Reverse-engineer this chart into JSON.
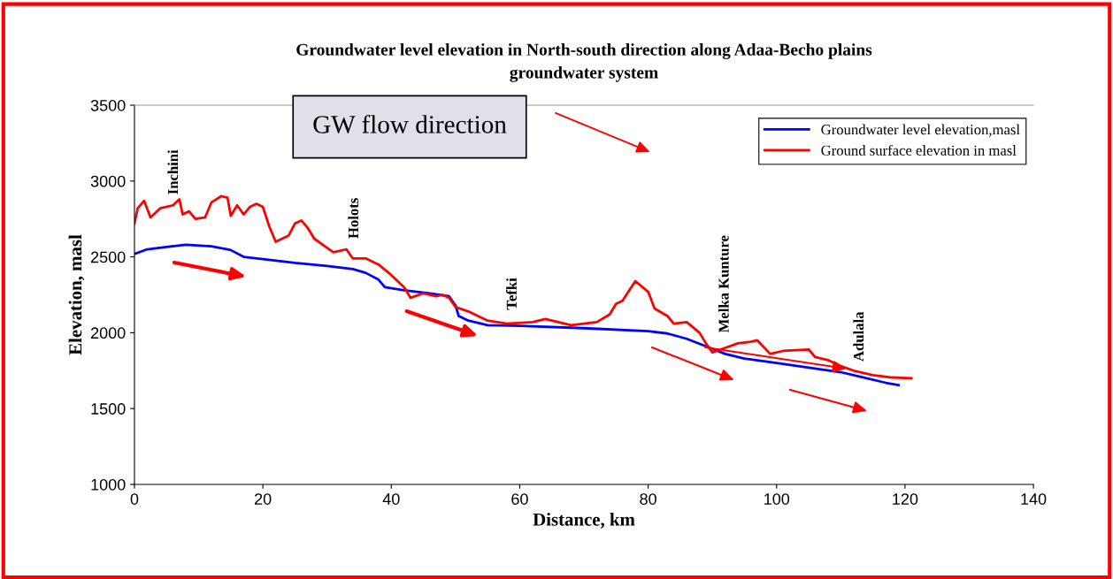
{
  "chart_data": {
    "type": "line",
    "title": "Groundwater level elevation in North-south direction along Adaa-Becho plains\ngroundwater system",
    "xlabel": "Distance, km",
    "ylabel": "Elevation, masl",
    "xlim": [
      0,
      140
    ],
    "xticks": [
      0,
      20,
      40,
      60,
      80,
      100,
      120,
      140
    ],
    "ylim": [
      1000,
      3500
    ],
    "yticks": [
      1000,
      1500,
      2000,
      2500,
      3000,
      3500
    ],
    "grid": false,
    "legend": "top right",
    "marker": "none",
    "line_style": "solid",
    "series": [
      {
        "name": "Groundwater level elevation,masl",
        "color": "#0000ff",
        "x": [
          0,
          2,
          5,
          8,
          12,
          15,
          17,
          20,
          25,
          30,
          34,
          36,
          38,
          39,
          42,
          46,
          49,
          50,
          50.5,
          52,
          55,
          60,
          70,
          80,
          83,
          86,
          89,
          92,
          95,
          100,
          105,
          110,
          113,
          117,
          119
        ],
        "values": [
          2520,
          2550,
          2565,
          2580,
          2570,
          2545,
          2500,
          2485,
          2460,
          2440,
          2420,
          2395,
          2350,
          2300,
          2280,
          2260,
          2240,
          2180,
          2110,
          2080,
          2050,
          2045,
          2030,
          2010,
          1995,
          1960,
          1910,
          1860,
          1830,
          1800,
          1770,
          1740,
          1710,
          1670,
          1655
        ]
      },
      {
        "name": "Ground surface elevation in masl",
        "color": "#ff0000",
        "x": [
          0,
          0.5,
          1.5,
          2.5,
          4,
          6,
          7,
          7.5,
          8.5,
          9.5,
          11,
          12,
          13.5,
          14.5,
          15,
          16,
          17,
          18,
          19,
          20,
          21,
          22,
          24,
          25,
          26,
          27,
          28,
          30,
          31,
          33,
          34,
          36,
          38,
          40,
          42,
          43,
          45,
          47,
          48,
          49,
          50,
          52,
          55,
          58,
          62,
          64,
          66,
          68,
          72,
          74,
          75,
          76,
          78,
          80,
          81,
          83,
          84,
          86,
          88,
          89,
          90,
          92,
          94,
          96,
          97,
          99,
          101,
          105,
          106,
          108,
          110,
          112,
          115,
          118,
          121
        ],
        "values": [
          2720,
          2820,
          2870,
          2760,
          2820,
          2840,
          2880,
          2780,
          2800,
          2750,
          2760,
          2860,
          2900,
          2890,
          2770,
          2840,
          2780,
          2830,
          2850,
          2830,
          2700,
          2600,
          2640,
          2720,
          2740,
          2690,
          2620,
          2560,
          2530,
          2550,
          2490,
          2490,
          2450,
          2380,
          2300,
          2230,
          2260,
          2240,
          2250,
          2230,
          2170,
          2140,
          2080,
          2060,
          2070,
          2090,
          2070,
          2050,
          2070,
          2120,
          2190,
          2210,
          2340,
          2270,
          2160,
          2110,
          2060,
          2070,
          2000,
          1930,
          1870,
          1900,
          1930,
          1940,
          1950,
          1860,
          1880,
          1890,
          1840,
          1820,
          1780,
          1750,
          1720,
          1705,
          1700
        ]
      }
    ],
    "annotations": [
      "GW flow direction",
      "Inchini",
      "Holots",
      "Tefki",
      "Melka Kunture",
      {
        "text": "Adulala",
        "x": 110.9,
        "y": 1763
      }
    ]
  }
}
